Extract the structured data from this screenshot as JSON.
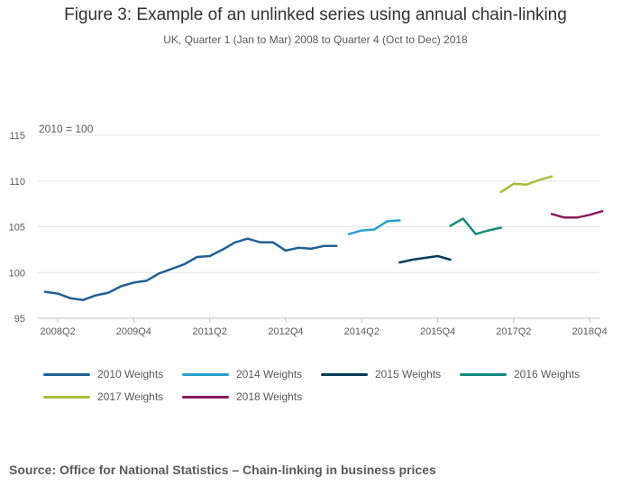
{
  "title": "Figure 3: Example of an unlinked series using annual chain-linking",
  "subtitle": "UK, Quarter 1 (Jan to Mar) 2008 to Quarter 4 (Oct to Dec) 2018",
  "source": "Source: Office for National Statistics – Chain-linking in business prices",
  "chart_data": {
    "type": "line",
    "annotation": "2010 = 100",
    "x_ticks": [
      "2008Q2",
      "2009Q4",
      "2011Q2",
      "2012Q4",
      "2014Q2",
      "2015Q4",
      "2017Q2",
      "2018Q4"
    ],
    "y_ticks": [
      95,
      100,
      105,
      110,
      115
    ],
    "ylim": [
      95,
      115
    ],
    "xlim": [
      "2008Q1",
      "2018Q4"
    ],
    "grid": true,
    "legend_position": "bottom",
    "series": [
      {
        "name": "2010 Weights",
        "color": "#206095",
        "points": [
          {
            "x": "2008Q1",
            "y": 97.9
          },
          {
            "x": "2008Q2",
            "y": 97.7
          },
          {
            "x": "2008Q3",
            "y": 97.2
          },
          {
            "x": "2008Q4",
            "y": 97.0
          },
          {
            "x": "2009Q1",
            "y": 97.5
          },
          {
            "x": "2009Q2",
            "y": 97.8
          },
          {
            "x": "2009Q3",
            "y": 98.5
          },
          {
            "x": "2009Q4",
            "y": 98.9
          },
          {
            "x": "2010Q1",
            "y": 99.1
          },
          {
            "x": "2010Q2",
            "y": 99.9
          },
          {
            "x": "2010Q3",
            "y": 100.4
          },
          {
            "x": "2010Q4",
            "y": 100.9
          },
          {
            "x": "2011Q1",
            "y": 101.7
          },
          {
            "x": "2011Q2",
            "y": 101.8
          },
          {
            "x": "2011Q3",
            "y": 102.5
          },
          {
            "x": "2011Q4",
            "y": 103.3
          },
          {
            "x": "2012Q1",
            "y": 103.7
          },
          {
            "x": "2012Q2",
            "y": 103.3
          },
          {
            "x": "2012Q3",
            "y": 103.3
          },
          {
            "x": "2012Q4",
            "y": 102.4
          },
          {
            "x": "2013Q1",
            "y": 102.7
          },
          {
            "x": "2013Q2",
            "y": 102.6
          },
          {
            "x": "2013Q3",
            "y": 102.9
          },
          {
            "x": "2013Q4",
            "y": 102.9
          }
        ]
      },
      {
        "name": "2014 Weights",
        "color": "#27a0cc",
        "points": [
          {
            "x": "2014Q1",
            "y": 104.2
          },
          {
            "x": "2014Q2",
            "y": 104.6
          },
          {
            "x": "2014Q3",
            "y": 104.7
          },
          {
            "x": "2014Q4",
            "y": 105.6
          },
          {
            "x": "2015Q1",
            "y": 105.7
          }
        ]
      },
      {
        "name": "2015 Weights",
        "color": "#003c57",
        "points": [
          {
            "x": "2015Q1",
            "y": 101.1
          },
          {
            "x": "2015Q2",
            "y": 101.4
          },
          {
            "x": "2015Q3",
            "y": 101.6
          },
          {
            "x": "2015Q4",
            "y": 101.8
          },
          {
            "x": "2016Q1",
            "y": 101.4
          }
        ]
      },
      {
        "name": "2016 Weights",
        "color": "#118c7b",
        "points": [
          {
            "x": "2016Q1",
            "y": 105.1
          },
          {
            "x": "2016Q2",
            "y": 105.9
          },
          {
            "x": "2016Q3",
            "y": 104.2
          },
          {
            "x": "2016Q4",
            "y": 104.6
          },
          {
            "x": "2017Q1",
            "y": 104.9
          }
        ]
      },
      {
        "name": "2017 Weights",
        "color": "#a8bd3a",
        "points": [
          {
            "x": "2017Q1",
            "y": 108.8
          },
          {
            "x": "2017Q2",
            "y": 109.7
          },
          {
            "x": "2017Q3",
            "y": 109.6
          },
          {
            "x": "2017Q4",
            "y": 110.1
          },
          {
            "x": "2018Q1",
            "y": 110.5
          }
        ]
      },
      {
        "name": "2018 Weights",
        "color": "#871a5b",
        "points": [
          {
            "x": "2018Q1",
            "y": 106.4
          },
          {
            "x": "2018Q2",
            "y": 106.0
          },
          {
            "x": "2018Q3",
            "y": 106.0
          },
          {
            "x": "2018Q4",
            "y": 106.3
          },
          {
            "x": "2019Q1",
            "y": 106.7
          }
        ]
      }
    ]
  }
}
